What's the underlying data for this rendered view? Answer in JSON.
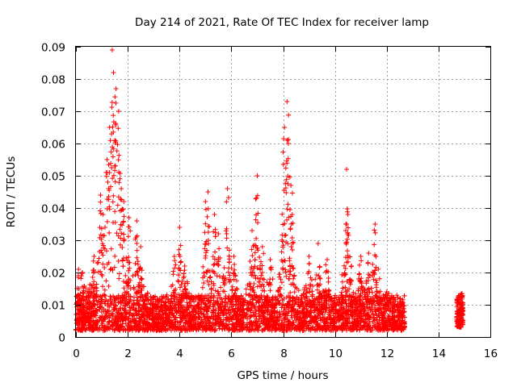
{
  "chart_data": {
    "type": "scatter",
    "title": "Day 214 of 2021, Rate Of TEC Index for receiver lamp",
    "xlabel": "GPS time / hours",
    "ylabel": "ROTI / TECUs",
    "xlim": [
      0,
      16
    ],
    "ylim": [
      0,
      0.09
    ],
    "xticks": [
      0,
      2,
      4,
      6,
      8,
      10,
      12,
      14,
      16
    ],
    "xtick_labels": [
      "0",
      "2",
      "4",
      "6",
      "8",
      "10",
      "12",
      "14",
      "16"
    ],
    "yticks": [
      0,
      0.01,
      0.02,
      0.03,
      0.04,
      0.05,
      0.06,
      0.07,
      0.08,
      0.09
    ],
    "ytick_labels": [
      "0",
      "0.01",
      "0.02",
      "0.03",
      "0.04",
      "0.05",
      "0.06",
      "0.07",
      "0.08",
      "0.09"
    ],
    "grid": true,
    "marker": "+",
    "color": "#ff0000",
    "series": [
      {
        "name": "ROTI",
        "segments": [
          {
            "x_range": [
              0.0,
              12.7
            ],
            "baseline_range": [
              0.002,
              0.013
            ],
            "note": "dense continuous band"
          },
          {
            "x_range": [
              14.7,
              14.95
            ],
            "baseline_range": [
              0.003,
              0.013
            ],
            "note": "isolated cluster"
          }
        ],
        "peaks": [
          {
            "x": 0.1,
            "y": 0.021
          },
          {
            "x": 0.25,
            "y": 0.02
          },
          {
            "x": 0.7,
            "y": 0.025
          },
          {
            "x": 0.95,
            "y": 0.044
          },
          {
            "x": 1.05,
            "y": 0.038
          },
          {
            "x": 1.2,
            "y": 0.055
          },
          {
            "x": 1.3,
            "y": 0.065
          },
          {
            "x": 1.4,
            "y": 0.089
          },
          {
            "x": 1.45,
            "y": 0.082
          },
          {
            "x": 1.55,
            "y": 0.077
          },
          {
            "x": 1.65,
            "y": 0.07
          },
          {
            "x": 1.75,
            "y": 0.046
          },
          {
            "x": 1.85,
            "y": 0.042
          },
          {
            "x": 2.05,
            "y": 0.037
          },
          {
            "x": 2.35,
            "y": 0.036
          },
          {
            "x": 2.5,
            "y": 0.028
          },
          {
            "x": 3.8,
            "y": 0.025
          },
          {
            "x": 4.0,
            "y": 0.034
          },
          {
            "x": 4.2,
            "y": 0.022
          },
          {
            "x": 5.0,
            "y": 0.042
          },
          {
            "x": 5.1,
            "y": 0.045
          },
          {
            "x": 5.35,
            "y": 0.038
          },
          {
            "x": 5.5,
            "y": 0.032
          },
          {
            "x": 5.85,
            "y": 0.046
          },
          {
            "x": 6.1,
            "y": 0.025
          },
          {
            "x": 6.8,
            "y": 0.033
          },
          {
            "x": 7.0,
            "y": 0.05
          },
          {
            "x": 7.2,
            "y": 0.028
          },
          {
            "x": 7.5,
            "y": 0.024
          },
          {
            "x": 8.05,
            "y": 0.065
          },
          {
            "x": 8.15,
            "y": 0.073
          },
          {
            "x": 8.2,
            "y": 0.06
          },
          {
            "x": 8.3,
            "y": 0.047
          },
          {
            "x": 8.35,
            "y": 0.038
          },
          {
            "x": 9.0,
            "y": 0.025
          },
          {
            "x": 9.35,
            "y": 0.029
          },
          {
            "x": 9.7,
            "y": 0.024
          },
          {
            "x": 10.45,
            "y": 0.052
          },
          {
            "x": 10.5,
            "y": 0.038
          },
          {
            "x": 11.0,
            "y": 0.025
          },
          {
            "x": 11.3,
            "y": 0.026
          },
          {
            "x": 11.55,
            "y": 0.035
          },
          {
            "x": 12.0,
            "y": 0.014
          },
          {
            "x": 12.6,
            "y": 0.011
          },
          {
            "x": 14.85,
            "y": 0.013
          }
        ]
      }
    ]
  }
}
